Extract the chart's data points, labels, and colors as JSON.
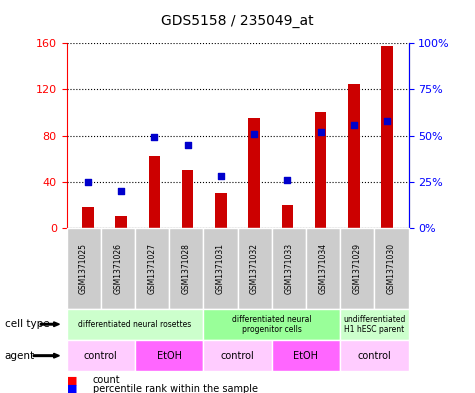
{
  "title": "GDS5158 / 235049_at",
  "samples": [
    "GSM1371025",
    "GSM1371026",
    "GSM1371027",
    "GSM1371028",
    "GSM1371031",
    "GSM1371032",
    "GSM1371033",
    "GSM1371034",
    "GSM1371029",
    "GSM1371030"
  ],
  "counts": [
    18,
    10,
    62,
    50,
    30,
    95,
    20,
    100,
    125,
    158
  ],
  "percentiles": [
    25,
    20,
    49,
    45,
    28,
    51,
    26,
    52,
    56,
    58
  ],
  "ylim_left": [
    0,
    160
  ],
  "ylim_right": [
    0,
    100
  ],
  "yticks_left": [
    0,
    40,
    80,
    120,
    160
  ],
  "ytick_labels_left": [
    "0",
    "40",
    "80",
    "120",
    "160"
  ],
  "yticks_right": [
    0,
    25,
    50,
    75,
    100
  ],
  "ytick_labels_right": [
    "0%",
    "25%",
    "50%",
    "75%",
    "100%"
  ],
  "bar_color": "#cc0000",
  "dot_color": "#0000cc",
  "cell_type_groups": [
    {
      "label": "differentiated neural rosettes",
      "start": 0,
      "end": 4,
      "color": "#ccffcc"
    },
    {
      "label": "differentiated neural\nprogenitor cells",
      "start": 4,
      "end": 8,
      "color": "#99ff99"
    },
    {
      "label": "undifferentiated\nH1 hESC parent",
      "start": 8,
      "end": 10,
      "color": "#ccffcc"
    }
  ],
  "agent_groups": [
    {
      "label": "control",
      "start": 0,
      "end": 2,
      "color": "#ffccff"
    },
    {
      "label": "EtOH",
      "start": 2,
      "end": 4,
      "color": "#ff66ff"
    },
    {
      "label": "control",
      "start": 4,
      "end": 6,
      "color": "#ffccff"
    },
    {
      "label": "EtOH",
      "start": 6,
      "end": 8,
      "color": "#ff66ff"
    },
    {
      "label": "control",
      "start": 8,
      "end": 10,
      "color": "#ffccff"
    }
  ],
  "legend_count_label": "count",
  "legend_percentile_label": "percentile rank within the sample",
  "xlabel_cell_type": "cell type",
  "xlabel_agent": "agent",
  "sample_bg_color": "#cccccc",
  "grid_linestyle": "dotted"
}
